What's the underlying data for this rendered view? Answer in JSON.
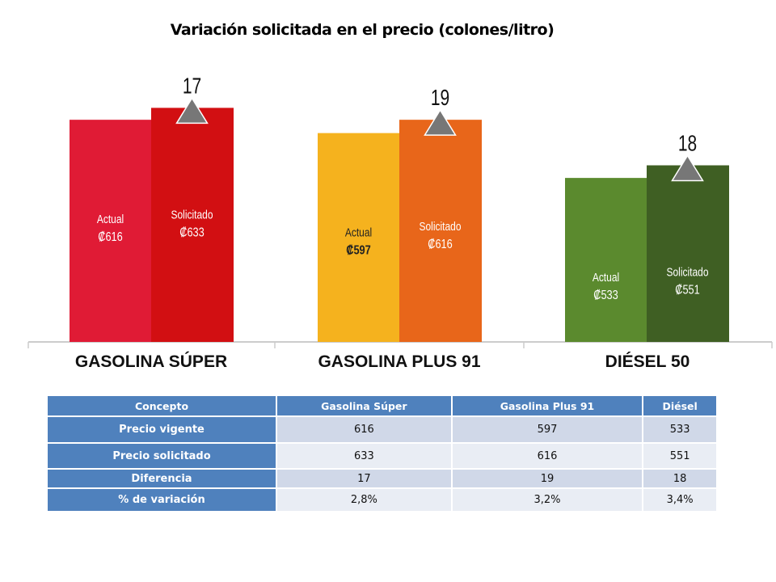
{
  "chart_data": {
    "type": "bar",
    "title": "Variación solicitada en el precio (colones/litro)",
    "categories": [
      "GASOLINA SÚPER",
      "GASOLINA PLUS 91",
      "DIÉSEL 50"
    ],
    "series": [
      {
        "name": "Actual",
        "values": [
          616,
          597,
          533
        ],
        "labels": [
          "₡616",
          "₡597",
          "₡533"
        ],
        "colors": [
          "#e01b35",
          "#f5b21e",
          "#5b8a2e"
        ]
      },
      {
        "name": "Solicitado",
        "values": [
          633,
          616,
          551
        ],
        "labels": [
          "₡633",
          "₡616",
          "₡551"
        ],
        "colors": [
          "#d20f12",
          "#e8661a",
          "#3f5f23"
        ]
      }
    ],
    "differences": [
      "17",
      "19",
      "18"
    ],
    "ylim": [
      300,
      650
    ],
    "marker_color": "#777777"
  },
  "table": {
    "headers": [
      "Concepto",
      "Gasolina Súper",
      "Gasolina Plus 91",
      "Diésel"
    ],
    "rows": [
      [
        "Precio vigente",
        "616",
        "597",
        "533"
      ],
      [
        "Precio solicitado",
        "633",
        "616",
        "551"
      ],
      [
        "Diferencia",
        "17",
        "19",
        "18"
      ],
      [
        "% de variación",
        "2,8%",
        "3,2%",
        "3,4%"
      ]
    ]
  }
}
